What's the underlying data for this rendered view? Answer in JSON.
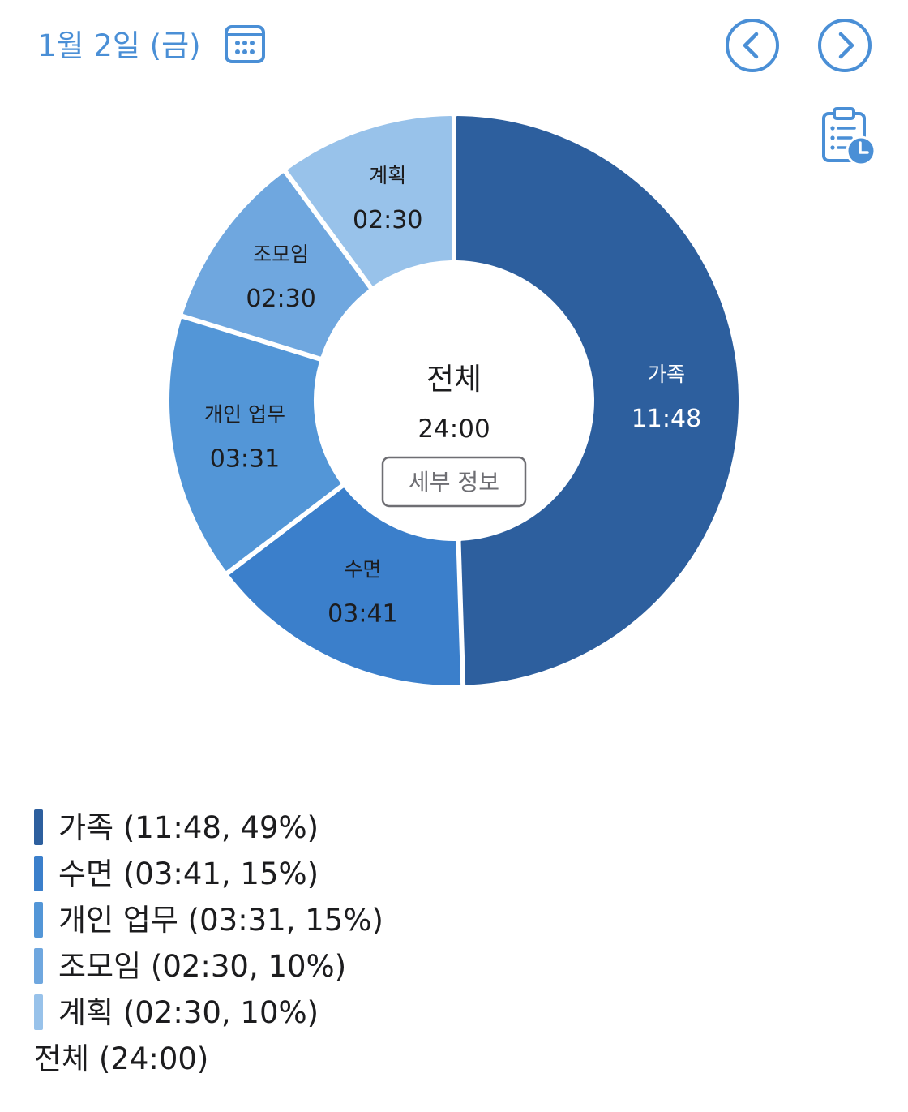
{
  "header": {
    "date": "1월 2일 (금)",
    "accent": "#4a8fd6",
    "icons": {
      "calendar": "calendar-icon",
      "prev": "chevron-left-circle-icon",
      "next": "chevron-right-circle-icon",
      "clipboard": "clipboard-clock-icon"
    }
  },
  "center": {
    "label": "전체",
    "time": "24:00",
    "detail_button": "세부 정보"
  },
  "chart_data": {
    "type": "pie",
    "donut": true,
    "start": "top",
    "direction": "clockwise",
    "total_label": "전체",
    "total": "24:00",
    "slices": [
      {
        "label": "가족",
        "time": "11:48",
        "percent": 49,
        "color": "#2d5f9e"
      },
      {
        "label": "수면",
        "time": "03:41",
        "percent": 15,
        "color": "#3b7fcb"
      },
      {
        "label": "개인 업무",
        "time": "03:31",
        "percent": 15,
        "color": "#5396d7"
      },
      {
        "label": "조모임",
        "time": "02:30",
        "percent": 10,
        "color": "#6fa7df"
      },
      {
        "label": "계획",
        "time": "02:30",
        "percent": 10,
        "color": "#98c2ea"
      }
    ]
  },
  "legend": {
    "items": [
      {
        "text": "가족 (11:48, 49%)",
        "color": "#2d5f9e"
      },
      {
        "text": "수면 (03:41, 15%)",
        "color": "#3b7fcb"
      },
      {
        "text": "개인 업무 (03:31, 15%)",
        "color": "#5396d7"
      },
      {
        "text": "조모임 (02:30, 10%)",
        "color": "#6fa7df"
      },
      {
        "text": "계획 (02:30, 10%)",
        "color": "#98c2ea"
      }
    ],
    "total": "전체 (24:00)"
  }
}
